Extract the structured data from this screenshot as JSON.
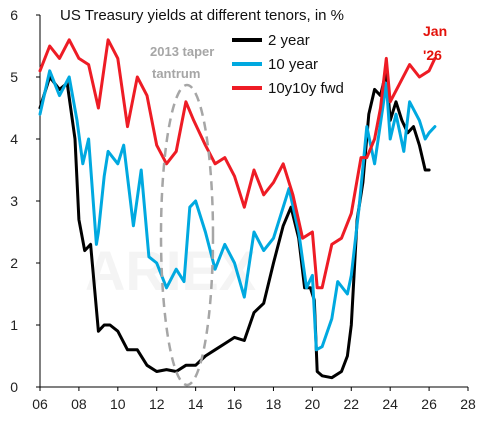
{
  "chart_data": {
    "type": "line",
    "title": "US Treasury yields at different tenors, in %",
    "annotations": {
      "taper_line1": "2013 taper",
      "taper_line2": "tantrum",
      "date_line1": "Jan",
      "date_line2": "'26"
    },
    "x_ticks": [
      "06",
      "08",
      "10",
      "12",
      "14",
      "16",
      "18",
      "20",
      "22",
      "24",
      "26",
      "28"
    ],
    "y_ticks": [
      "0",
      "1",
      "2",
      "3",
      "4",
      "5",
      "6"
    ],
    "xlim": [
      2006,
      2028
    ],
    "ylim": [
      0,
      6
    ],
    "grid": false,
    "legend_position": "top-right",
    "series": [
      {
        "name": "2 year",
        "color": "#000000",
        "x": [
          2006.0,
          2006.5,
          2007.0,
          2007.4,
          2007.8,
          2008.0,
          2008.3,
          2008.6,
          2008.8,
          2009.0,
          2009.3,
          2009.6,
          2010.0,
          2010.5,
          2011.0,
          2011.5,
          2012.0,
          2012.5,
          2013.0,
          2013.5,
          2014.0,
          2014.5,
          2015.0,
          2015.5,
          2016.0,
          2016.5,
          2017.0,
          2017.5,
          2018.0,
          2018.5,
          2018.9,
          2019.3,
          2019.6,
          2019.9,
          2020.1,
          2020.25,
          2020.5,
          2021.0,
          2021.5,
          2021.8,
          2022.0,
          2022.3,
          2022.6,
          2022.9,
          2023.2,
          2023.5,
          2023.8,
          2024.0,
          2024.3,
          2024.6,
          2024.9,
          2025.2,
          2025.5,
          2025.8,
          2026.0
        ],
        "y": [
          4.5,
          5.0,
          4.8,
          4.9,
          4.0,
          2.7,
          2.2,
          2.3,
          1.6,
          0.9,
          1.0,
          1.0,
          0.9,
          0.6,
          0.6,
          0.35,
          0.25,
          0.28,
          0.25,
          0.35,
          0.35,
          0.5,
          0.6,
          0.7,
          0.8,
          0.75,
          1.2,
          1.35,
          2.0,
          2.6,
          2.9,
          2.4,
          1.6,
          1.6,
          1.4,
          0.25,
          0.18,
          0.15,
          0.25,
          0.5,
          1.0,
          2.7,
          3.3,
          4.4,
          4.8,
          4.7,
          5.1,
          4.3,
          4.6,
          4.3,
          4.1,
          4.2,
          3.9,
          3.5,
          3.5
        ]
      },
      {
        "name": "10 year",
        "color": "#00a9e0",
        "x": [
          2006.0,
          2006.5,
          2007.0,
          2007.5,
          2007.9,
          2008.2,
          2008.5,
          2008.9,
          2009.0,
          2009.3,
          2009.5,
          2010.0,
          2010.3,
          2010.8,
          2011.2,
          2011.6,
          2012.0,
          2012.5,
          2013.0,
          2013.4,
          2013.7,
          2014.0,
          2014.5,
          2015.0,
          2015.5,
          2016.0,
          2016.5,
          2017.0,
          2017.5,
          2018.0,
          2018.8,
          2019.3,
          2019.7,
          2020.0,
          2020.2,
          2020.5,
          2021.0,
          2021.3,
          2021.8,
          2022.0,
          2022.4,
          2022.8,
          2023.2,
          2023.8,
          2024.0,
          2024.3,
          2024.7,
          2025.0,
          2025.5,
          2025.8,
          2026.0,
          2026.3
        ],
        "y": [
          4.4,
          5.1,
          4.7,
          5.0,
          4.3,
          3.6,
          4.0,
          2.3,
          2.5,
          3.4,
          3.8,
          3.6,
          3.9,
          2.6,
          3.5,
          2.1,
          2.0,
          1.6,
          1.9,
          1.7,
          2.9,
          3.0,
          2.5,
          1.9,
          2.3,
          2.0,
          1.45,
          2.5,
          2.2,
          2.4,
          3.2,
          2.5,
          1.6,
          1.8,
          0.6,
          0.65,
          1.1,
          1.7,
          1.5,
          1.8,
          2.9,
          4.2,
          3.6,
          4.9,
          4.0,
          4.4,
          3.8,
          4.6,
          4.3,
          4.0,
          4.1,
          4.2
        ]
      },
      {
        "name": "10y10y fwd",
        "color": "#ee1c25",
        "x": [
          2006.0,
          2006.5,
          2007.0,
          2007.5,
          2008.0,
          2008.5,
          2009.0,
          2009.5,
          2010.0,
          2010.5,
          2011.0,
          2011.5,
          2012.0,
          2012.5,
          2013.0,
          2013.5,
          2013.9,
          2014.5,
          2015.0,
          2015.5,
          2016.0,
          2016.5,
          2017.0,
          2017.5,
          2018.0,
          2018.5,
          2019.0,
          2019.5,
          2020.0,
          2020.25,
          2020.5,
          2021.0,
          2021.5,
          2022.0,
          2022.5,
          2022.8,
          2023.2,
          2023.5,
          2023.8,
          2024.0,
          2024.5,
          2025.0,
          2025.5,
          2026.0,
          2026.3
        ],
        "y": [
          5.1,
          5.5,
          5.3,
          5.6,
          5.3,
          5.2,
          4.5,
          5.6,
          5.3,
          4.2,
          5.0,
          4.7,
          3.9,
          3.6,
          3.8,
          4.6,
          4.3,
          3.9,
          3.6,
          3.7,
          3.4,
          2.9,
          3.5,
          3.1,
          3.3,
          3.6,
          3.1,
          2.4,
          2.5,
          1.6,
          1.6,
          2.3,
          2.4,
          2.8,
          3.7,
          3.7,
          4.0,
          4.5,
          5.3,
          4.6,
          4.9,
          5.2,
          5.0,
          5.1,
          5.3
        ]
      }
    ]
  }
}
